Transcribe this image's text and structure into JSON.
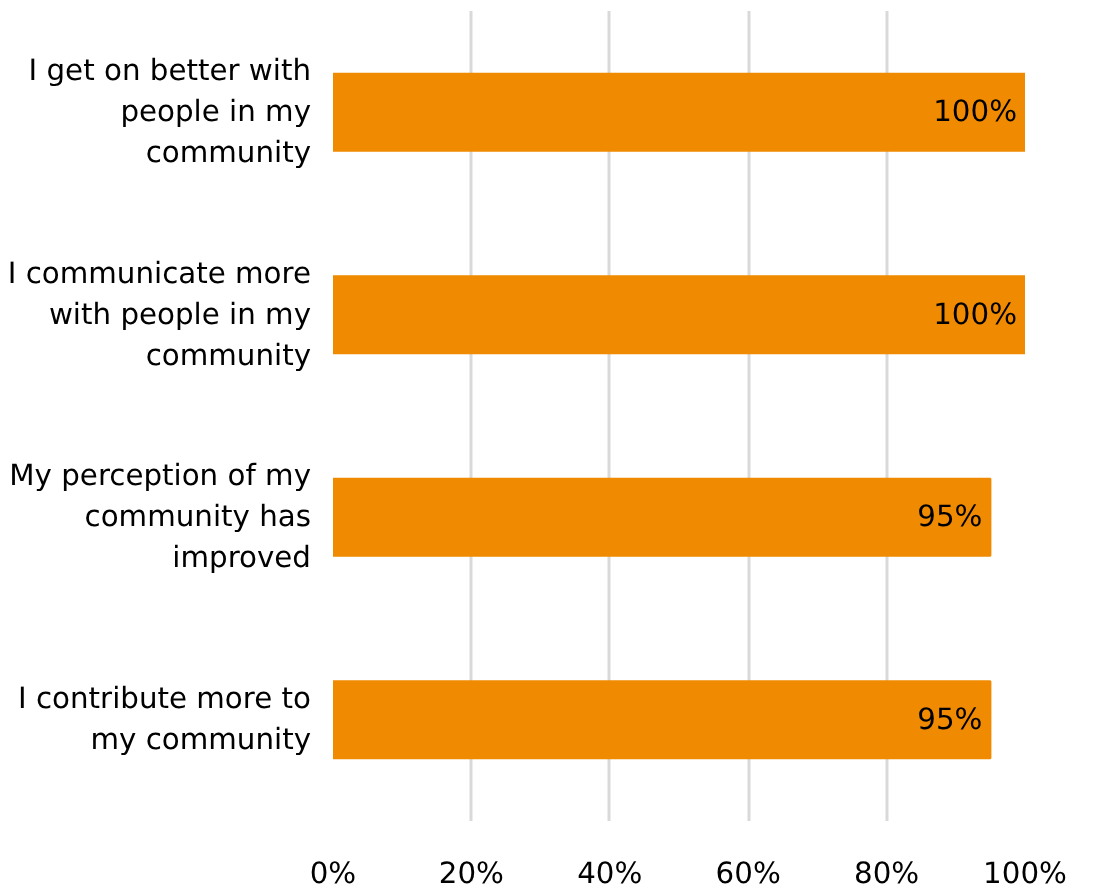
{
  "chart_data": {
    "type": "bar",
    "orientation": "horizontal",
    "categories": [
      "I get on better with people in my community",
      "I communicate more with people in my community",
      "My perception of my community has improved",
      "I contribute more to my community"
    ],
    "values": [
      100,
      100,
      95,
      95
    ],
    "color": "#f08a00",
    "value_labels": [
      "100%",
      "100%",
      "95%",
      "95%"
    ],
    "xlim": [
      0,
      100
    ],
    "xticks": [
      {
        "value": 0,
        "label": "0%"
      },
      {
        "value": 20,
        "label": "20%"
      },
      {
        "value": 40,
        "label": "40%"
      },
      {
        "value": 60,
        "label": "60%"
      },
      {
        "value": 80,
        "label": "80%"
      },
      {
        "value": 100,
        "label": "100%"
      }
    ],
    "grid": "x"
  }
}
